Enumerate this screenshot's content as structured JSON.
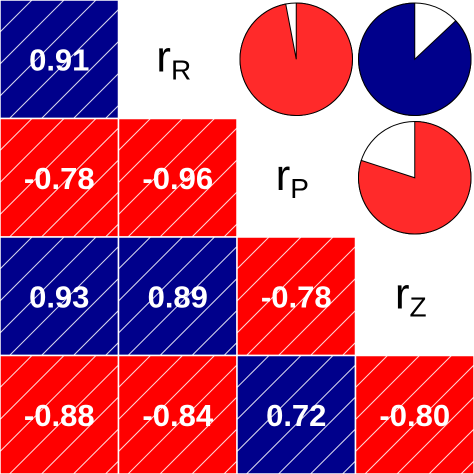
{
  "chart_data": {
    "type": "heatmap",
    "variables": [
      "R",
      "P",
      "Z"
    ],
    "diag_prefix": "r",
    "cells": [
      {
        "row": 0,
        "col": 0,
        "label": "0.91",
        "value": 0.91
      },
      {
        "row": 1,
        "col": 0,
        "label": "-0.78",
        "value": -0.78
      },
      {
        "row": 1,
        "col": 1,
        "label": "-0.96",
        "value": -0.96
      },
      {
        "row": 2,
        "col": 0,
        "label": "0.93",
        "value": 0.93
      },
      {
        "row": 2,
        "col": 1,
        "label": "0.89",
        "value": 0.89
      },
      {
        "row": 2,
        "col": 2,
        "label": "-0.78",
        "value": -0.78
      },
      {
        "row": 3,
        "col": 0,
        "label": "-0.88",
        "value": -0.88
      },
      {
        "row": 3,
        "col": 1,
        "label": "-0.84",
        "value": -0.84
      },
      {
        "row": 3,
        "col": 2,
        "label": "0.72",
        "value": 0.72
      },
      {
        "row": 3,
        "col": 3,
        "label": "-0.80",
        "value": -0.8
      }
    ],
    "diagonal_labels": [
      {
        "row": 0,
        "col": 1,
        "variable": "R"
      },
      {
        "row": 1,
        "col": 2,
        "variable": "P"
      },
      {
        "row": 2,
        "col": 3,
        "variable": "Z"
      }
    ],
    "pies": [
      {
        "row": 0,
        "col": 2,
        "value": -0.97
      },
      {
        "row": 0,
        "col": 3,
        "value": 0.87
      },
      {
        "row": 1,
        "col": 3,
        "value": -0.8
      }
    ],
    "colors": {
      "positive": "#00008b",
      "negative": "#ff0000",
      "pie_negative": "#ff2a2a",
      "pie_empty": "#ffffff"
    }
  }
}
